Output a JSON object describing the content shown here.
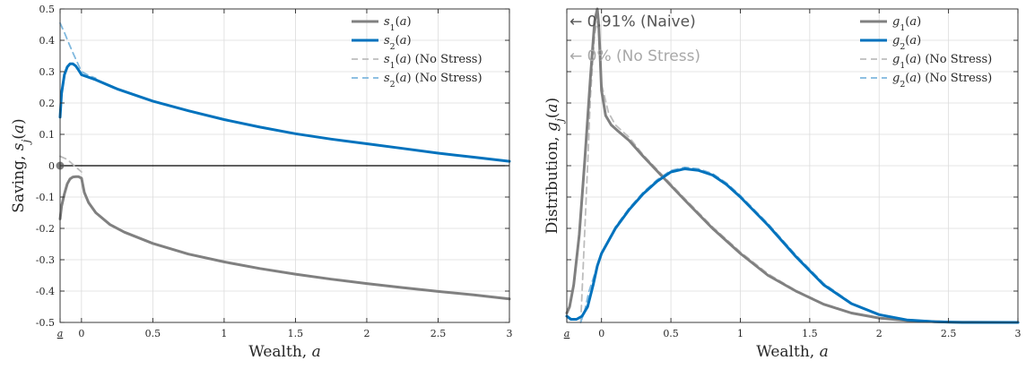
{
  "colors": {
    "gray": "#808080",
    "blue": "#0072BD",
    "gray_light": "#bdbdbd",
    "blue_light": "#7fb8de",
    "axis": "#262626",
    "annot_naive": "#555555",
    "annot_nostress": "#a8a8a8"
  },
  "chart_data": [
    {
      "type": "line",
      "xlabel": "Wealth, a",
      "ylabel": "Saving, s_j(a)",
      "xlim": [
        -0.15,
        3
      ],
      "ylim": [
        -0.5,
        0.5
      ],
      "grid": true,
      "legend_placement": "top-right",
      "xticks": [
        {
          "value": -0.15,
          "label": "a"
        },
        {
          "value": 0,
          "label": "0"
        },
        {
          "value": 0.5,
          "label": "0.5"
        },
        {
          "value": 1,
          "label": "1"
        },
        {
          "value": 1.5,
          "label": "1.5"
        },
        {
          "value": 2,
          "label": "2"
        },
        {
          "value": 2.5,
          "label": "2.5"
        },
        {
          "value": 3,
          "label": "3"
        }
      ],
      "yticks": [
        {
          "value": 0.5,
          "label": "0.5"
        },
        {
          "value": 0.4,
          "label": "0.4"
        },
        {
          "value": 0.3,
          "label": "0.3"
        },
        {
          "value": 0.2,
          "label": "0.2"
        },
        {
          "value": 0.1,
          "label": "0.1"
        },
        {
          "value": 0,
          "label": "0"
        },
        {
          "value": -0.1,
          "label": "-0.1"
        },
        {
          "value": -0.2,
          "label": "-0.2"
        },
        {
          "value": -0.3,
          "label": "-0.3"
        },
        {
          "value": -0.4,
          "label": "-0.4"
        },
        {
          "value": -0.5,
          "label": "-0.5"
        }
      ],
      "zero_line": 0,
      "marker": {
        "x": -0.15,
        "y": 0
      },
      "series": [
        {
          "name": "s1(a)",
          "color": "gray",
          "style": "solid",
          "width": 3,
          "x": [
            -0.15,
            -0.14,
            -0.12,
            -0.1,
            -0.08,
            -0.06,
            -0.04,
            -0.02,
            0,
            0.02,
            0.05,
            0.1,
            0.2,
            0.3,
            0.5,
            0.75,
            1,
            1.25,
            1.5,
            1.75,
            2,
            2.25,
            2.5,
            2.75,
            3
          ],
          "y": [
            -0.17,
            -0.13,
            -0.09,
            -0.058,
            -0.042,
            -0.036,
            -0.035,
            -0.035,
            -0.04,
            -0.085,
            -0.118,
            -0.15,
            -0.188,
            -0.212,
            -0.248,
            -0.282,
            -0.307,
            -0.328,
            -0.346,
            -0.362,
            -0.376,
            -0.389,
            -0.401,
            -0.412,
            -0.425
          ]
        },
        {
          "name": "s2(a)",
          "color": "blue",
          "style": "solid",
          "width": 3,
          "x": [
            -0.15,
            -0.14,
            -0.12,
            -0.1,
            -0.08,
            -0.06,
            -0.04,
            -0.02,
            0,
            0.1,
            0.25,
            0.5,
            0.75,
            1,
            1.25,
            1.5,
            1.75,
            2,
            2.25,
            2.5,
            2.75,
            3
          ],
          "y": [
            0.155,
            0.23,
            0.29,
            0.315,
            0.325,
            0.325,
            0.318,
            0.305,
            0.29,
            0.274,
            0.245,
            0.206,
            0.175,
            0.147,
            0.123,
            0.102,
            0.085,
            0.07,
            0.055,
            0.04,
            0.027,
            0.014
          ]
        },
        {
          "name": "s1(a) (No Stress)",
          "color": "gray_light",
          "style": "dashed",
          "width": 1.8,
          "x": [
            -0.15,
            -0.1,
            -0.05,
            0
          ],
          "y": [
            0.03,
            0.02,
            0.0,
            -0.02
          ]
        },
        {
          "name": "s2(a) (No Stress)",
          "color": "blue_light",
          "style": "dashed",
          "width": 1.8,
          "x": [
            -0.15,
            -0.12,
            -0.09,
            -0.06,
            -0.03,
            0,
            0.05,
            0.1
          ],
          "y": [
            0.455,
            0.425,
            0.392,
            0.36,
            0.33,
            0.3,
            0.288,
            0.279
          ]
        }
      ]
    },
    {
      "type": "line",
      "xlabel": "Wealth, a",
      "ylabel": "Distribution, g_j(a)",
      "xlim": [
        -0.25,
        3
      ],
      "ylim": [
        0,
        1
      ],
      "grid": true,
      "legend_placement": "top-right",
      "xticks": [
        {
          "value": -0.25,
          "label": "a"
        },
        {
          "value": 0,
          "label": "0"
        },
        {
          "value": 0.5,
          "label": "0.5"
        },
        {
          "value": 1,
          "label": "1"
        },
        {
          "value": 1.5,
          "label": "1.5"
        },
        {
          "value": 2,
          "label": "2"
        },
        {
          "value": 2.5,
          "label": "2.5"
        },
        {
          "value": 3,
          "label": "3"
        }
      ],
      "annotations": [
        {
          "text": "← 0.91% (Naive)",
          "x": -0.25,
          "y": 0.945,
          "color": "annot_naive"
        },
        {
          "text": "← 0% (No Stress)",
          "x": -0.25,
          "y": 0.835,
          "color": "annot_nostress"
        }
      ],
      "series": [
        {
          "name": "g1(a)",
          "color": "gray",
          "style": "solid",
          "width": 3,
          "x": [
            -0.25,
            -0.23,
            -0.2,
            -0.16,
            -0.12,
            -0.08,
            -0.05,
            -0.03,
            -0.02,
            -0.01,
            0,
            0.03,
            0.07,
            0.12,
            0.2,
            0.3,
            0.45,
            0.6,
            0.8,
            1,
            1.2,
            1.4,
            1.6,
            1.8,
            2,
            2.2,
            2.5,
            3
          ],
          "y": [
            0.03,
            0.05,
            0.12,
            0.28,
            0.52,
            0.78,
            0.96,
            1.0,
            0.95,
            0.85,
            0.74,
            0.66,
            0.63,
            0.61,
            0.58,
            0.53,
            0.46,
            0.39,
            0.3,
            0.22,
            0.15,
            0.1,
            0.058,
            0.03,
            0.014,
            0.006,
            0.001,
            0.0
          ]
        },
        {
          "name": "g2(a)",
          "color": "blue",
          "style": "solid",
          "width": 3,
          "x": [
            -0.25,
            -0.22,
            -0.18,
            -0.14,
            -0.1,
            -0.06,
            -0.03,
            0,
            0.1,
            0.2,
            0.3,
            0.4,
            0.5,
            0.6,
            0.7,
            0.8,
            0.9,
            1,
            1.2,
            1.4,
            1.6,
            1.8,
            2,
            2.2,
            2.4,
            2.6,
            3
          ],
          "y": [
            0.02,
            0.01,
            0.01,
            0.02,
            0.05,
            0.12,
            0.18,
            0.22,
            0.3,
            0.36,
            0.41,
            0.45,
            0.48,
            0.49,
            0.485,
            0.47,
            0.44,
            0.4,
            0.31,
            0.21,
            0.12,
            0.06,
            0.025,
            0.008,
            0.002,
            0.0,
            0.0
          ]
        },
        {
          "name": "g1(a) (No Stress)",
          "color": "gray_light",
          "style": "dashed",
          "width": 1.8,
          "x": [
            -0.15,
            -0.13,
            -0.1,
            -0.08,
            -0.05,
            -0.03,
            -0.01,
            0,
            0.05,
            0.1,
            0.2,
            0.3,
            0.45,
            0.6,
            0.8,
            1,
            1.2,
            1.4,
            1.6,
            1.8,
            2,
            2.2,
            2.5,
            3
          ],
          "y": [
            0.0,
            0.2,
            0.5,
            0.72,
            0.92,
            0.96,
            0.88,
            0.76,
            0.67,
            0.63,
            0.59,
            0.535,
            0.465,
            0.395,
            0.305,
            0.225,
            0.155,
            0.102,
            0.06,
            0.031,
            0.015,
            0.006,
            0.001,
            0.0
          ]
        },
        {
          "name": "g2(a) (No Stress)",
          "color": "blue_light",
          "style": "dashed",
          "width": 1.8,
          "x": [
            -0.15,
            -0.12,
            -0.09,
            -0.06,
            -0.03,
            0,
            0.1,
            0.2,
            0.3,
            0.4,
            0.5,
            0.6,
            0.7,
            0.8,
            0.9,
            1,
            1.2,
            1.4,
            1.6,
            1.8,
            2,
            2.2,
            2.4,
            2.6,
            3
          ],
          "y": [
            0.0,
            0.04,
            0.1,
            0.14,
            0.18,
            0.22,
            0.305,
            0.365,
            0.415,
            0.455,
            0.485,
            0.495,
            0.49,
            0.475,
            0.445,
            0.405,
            0.315,
            0.215,
            0.125,
            0.062,
            0.026,
            0.009,
            0.002,
            0.0,
            0.0
          ]
        }
      ]
    }
  ]
}
